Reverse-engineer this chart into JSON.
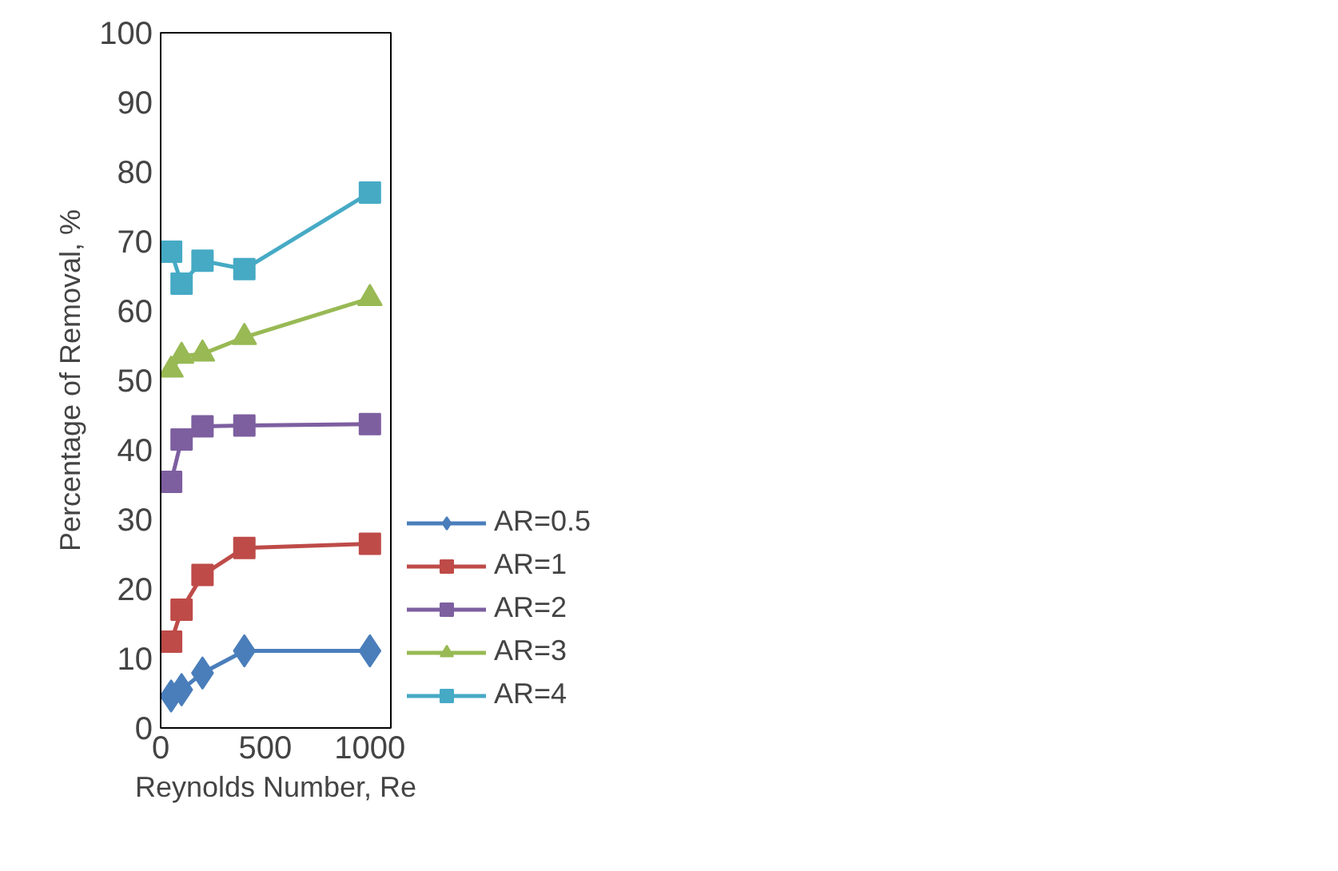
{
  "chart_data": {
    "type": "line",
    "xlabel": "Reynolds Number, Re",
    "ylabel": "Percentage of Removal, %",
    "x": [
      50,
      100,
      200,
      400,
      1000
    ],
    "xlim": [
      0,
      1100
    ],
    "xticks": [
      0,
      500,
      1000
    ],
    "ylim": [
      0,
      100
    ],
    "yticks": [
      0,
      10,
      20,
      30,
      40,
      50,
      60,
      70,
      80,
      90,
      100
    ],
    "grid": false,
    "legend": "right",
    "line_style": "solid",
    "series": [
      {
        "name": "AR=0.5",
        "color": "#4a7ebb",
        "marker": "diamond",
        "values": [
          4.6,
          5.5,
          7.9,
          11.1,
          11.1
        ]
      },
      {
        "name": "AR=1",
        "color": "#be4b48",
        "marker": "square",
        "values": [
          12.4,
          17,
          22,
          25.9,
          26.5
        ]
      },
      {
        "name": "AR=2",
        "color": "#7d5fa0",
        "marker": "square",
        "values": [
          35.4,
          41.5,
          43.4,
          43.5,
          43.7
        ]
      },
      {
        "name": "AR=3",
        "color": "#98b954",
        "marker": "triangle",
        "values": [
          51.5,
          53.5,
          53.8,
          56.2,
          61.8
        ]
      },
      {
        "name": "AR=4",
        "color": "#46aac5",
        "marker": "square",
        "values": [
          68.5,
          63.9,
          67.2,
          66,
          77
        ]
      }
    ]
  }
}
